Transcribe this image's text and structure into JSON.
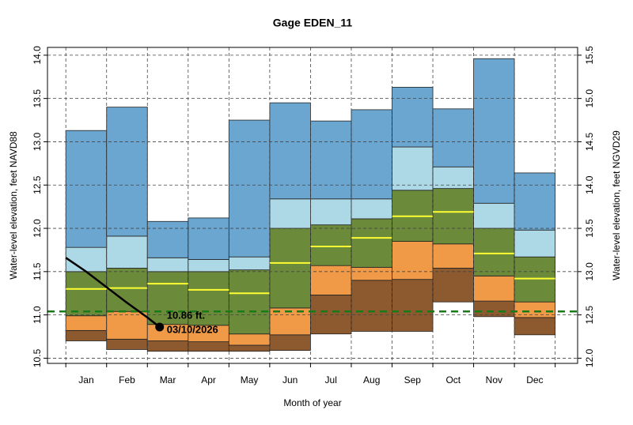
{
  "chart_data": {
    "type": "percentile-bands",
    "title": "Gage EDEN_11",
    "x_label": "Month of year",
    "y_label": "Water-level elevation, feet NAVD88",
    "y2_label": "Water-level elevation, feet NGVD29",
    "categories": [
      "Jan",
      "Feb",
      "Mar",
      "Apr",
      "May",
      "Jun",
      "Jul",
      "Aug",
      "Sep",
      "Oct",
      "Nov",
      "Dec"
    ],
    "xlim": [
      -0.45,
      12.55
    ],
    "ylim": [
      10.44,
      14.09
    ],
    "yticks": [
      {
        "value": 10.5,
        "label": "10.5"
      },
      {
        "value": 11,
        "label": "11.0"
      },
      11.5,
      {
        "value": 12,
        "label": "12.0"
      },
      12.5,
      {
        "value": 13,
        "label": "13.0"
      },
      13.5,
      {
        "value": 14,
        "label": "14.0"
      }
    ],
    "y2lim": [
      11.94,
      15.59
    ],
    "y2ticks": [
      {
        "value": 12,
        "label": "12.0"
      },
      12.5,
      {
        "value": 13,
        "label": "13.0"
      },
      13.5,
      {
        "value": 14,
        "label": "14.0"
      },
      14.5,
      {
        "value": 15,
        "label": "15.0"
      },
      15.5
    ],
    "grid": true,
    "levels": [
      [
        10.7,
        10.6,
        10.58,
        10.58,
        10.58,
        10.59,
        10.78,
        10.81,
        10.81,
        11.15,
        10.98,
        10.77
      ],
      [
        10.82,
        10.72,
        10.7,
        10.69,
        10.65,
        10.77,
        11.23,
        11.4,
        11.41,
        11.54,
        11.16,
        10.97
      ],
      [
        10.99,
        11.04,
        10.89,
        10.88,
        10.78,
        11.08,
        11.57,
        11.55,
        11.85,
        11.82,
        11.45,
        11.15
      ],
      [
        11.5,
        11.54,
        11.5,
        11.5,
        11.52,
        12.0,
        12.04,
        12.11,
        12.44,
        12.46,
        12.0,
        11.67
      ],
      [
        11.78,
        11.91,
        11.66,
        11.64,
        11.67,
        12.34,
        12.34,
        12.34,
        12.94,
        12.71,
        12.29,
        11.98
      ],
      [
        13.13,
        13.4,
        12.08,
        12.12,
        13.25,
        13.45,
        13.24,
        13.37,
        13.63,
        13.38,
        13.96,
        12.64
      ]
    ],
    "band_colors": [
      "#8c5a2e",
      "#f09a48",
      "#6b8a3a",
      "#add8e6",
      "#6aa6d0"
    ],
    "median": {
      "color": "#ffff33",
      "values": [
        11.3,
        11.31,
        11.36,
        11.29,
        11.25,
        11.6,
        11.79,
        11.89,
        12.14,
        12.19,
        11.71,
        11.42
      ]
    },
    "current": {
      "color": "#000000",
      "x": [
        0,
        0.5,
        1,
        1.5,
        2,
        2.3
      ],
      "values": [
        11.66,
        11.5,
        11.32,
        11.14,
        10.97,
        10.86
      ]
    },
    "reference_line": {
      "value": 11.04,
      "color": "#1a7a1a"
    },
    "annotation": {
      "value_text": "10.86 ft.",
      "date_text": "03/10/2026"
    }
  }
}
